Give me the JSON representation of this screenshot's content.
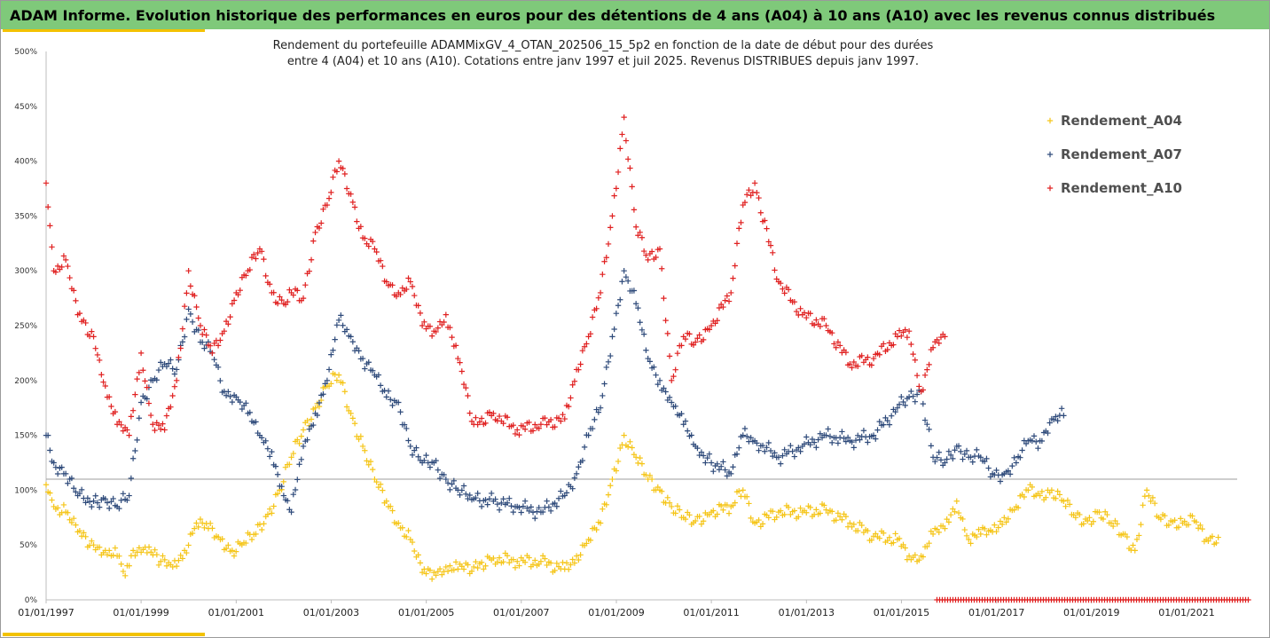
{
  "header": {
    "title": "ADAM Informe. Evolution historique des performances en euros pour des détentions de 4 ans (A04) à 10 ans (A10) avec les revenus connus distribués"
  },
  "chart_data": {
    "type": "scatter",
    "title_line1": "Rendement du portefeuille ADAMMixGV_4_OTAN_202506_15_5p2  en fonction de la date de début pour des durées",
    "title_line2": "entre 4 (A04) et 10 ans (A10). Cotations  entre janv 1997 et juil 2025. Revenus DISTRIBUES depuis janv 1997.",
    "xlabel": "",
    "ylabel": "",
    "x_unit": "date",
    "xlim": [
      "1997-01-01",
      "2022-07-01"
    ],
    "ylim": [
      0,
      500
    ],
    "y_ticks": [
      "0%",
      "50%",
      "100%",
      "150%",
      "200%",
      "250%",
      "300%",
      "350%",
      "400%",
      "450%",
      "500%"
    ],
    "x_ticks": [
      "01/01/1997",
      "01/01/1999",
      "01/01/2001",
      "01/01/2003",
      "01/01/2005",
      "01/01/2007",
      "01/01/2009",
      "01/01/2011",
      "01/01/2013",
      "01/01/2015",
      "01/01/2017",
      "01/01/2019",
      "01/01/2021"
    ],
    "reference_line_y": 110,
    "grid": false,
    "legend_position": "top-right",
    "marker": "+",
    "series": [
      {
        "name": "Rendement_A04",
        "color": "#f5c518",
        "points": [
          [
            "1997-01",
            105
          ],
          [
            "1997-03",
            85
          ],
          [
            "1997-06",
            80
          ],
          [
            "1997-09",
            62
          ],
          [
            "1998-01",
            50
          ],
          [
            "1998-04",
            45
          ],
          [
            "1998-07",
            40
          ],
          [
            "1998-09",
            22
          ],
          [
            "1998-11",
            45
          ],
          [
            "1999-02",
            48
          ],
          [
            "1999-06",
            35
          ],
          [
            "1999-09",
            30
          ],
          [
            "1999-12",
            45
          ],
          [
            "2000-03",
            70
          ],
          [
            "2000-06",
            65
          ],
          [
            "2000-09",
            55
          ],
          [
            "2000-12",
            45
          ],
          [
            "2001-03",
            52
          ],
          [
            "2001-06",
            60
          ],
          [
            "2001-09",
            78
          ],
          [
            "2001-12",
            100
          ],
          [
            "2002-03",
            130
          ],
          [
            "2002-06",
            155
          ],
          [
            "2002-09",
            175
          ],
          [
            "2002-12",
            195
          ],
          [
            "2003-03",
            205
          ],
          [
            "2003-06",
            170
          ],
          [
            "2003-09",
            140
          ],
          [
            "2003-12",
            110
          ],
          [
            "2004-03",
            90
          ],
          [
            "2004-06",
            70
          ],
          [
            "2004-09",
            55
          ],
          [
            "2004-12",
            25
          ],
          [
            "2005-03",
            25
          ],
          [
            "2005-06",
            30
          ],
          [
            "2005-09",
            28
          ],
          [
            "2006-01",
            30
          ],
          [
            "2006-06",
            38
          ],
          [
            "2006-12",
            35
          ],
          [
            "2007-06",
            35
          ],
          [
            "2007-12",
            28
          ],
          [
            "2008-03",
            40
          ],
          [
            "2008-06",
            55
          ],
          [
            "2008-09",
            70
          ],
          [
            "2008-12",
            110
          ],
          [
            "2009-03",
            150
          ],
          [
            "2009-06",
            130
          ],
          [
            "2009-09",
            110
          ],
          [
            "2009-12",
            100
          ],
          [
            "2010-03",
            85
          ],
          [
            "2010-06",
            75
          ],
          [
            "2010-09",
            72
          ],
          [
            "2011-01",
            80
          ],
          [
            "2011-06",
            85
          ],
          [
            "2011-09",
            100
          ],
          [
            "2011-12",
            70
          ],
          [
            "2012-06",
            80
          ],
          [
            "2012-12",
            80
          ],
          [
            "2013-06",
            82
          ],
          [
            "2013-12",
            70
          ],
          [
            "2014-06",
            58
          ],
          [
            "2014-12",
            55
          ],
          [
            "2015-03",
            40
          ],
          [
            "2015-06",
            40
          ],
          [
            "2015-09",
            60
          ],
          [
            "2015-12",
            65
          ],
          [
            "2016-03",
            90
          ],
          [
            "2016-06",
            55
          ],
          [
            "2016-09",
            60
          ],
          [
            "2016-12",
            62
          ],
          [
            "2017-03",
            75
          ],
          [
            "2017-06",
            85
          ],
          [
            "2017-09",
            100
          ],
          [
            "2017-12",
            95
          ],
          [
            "2018-03",
            100
          ],
          [
            "2018-06",
            90
          ],
          [
            "2018-09",
            75
          ],
          [
            "2018-12",
            72
          ],
          [
            "2019-03",
            80
          ],
          [
            "2019-06",
            70
          ],
          [
            "2019-09",
            60
          ],
          [
            "2019-12",
            45
          ],
          [
            "2020-03",
            100
          ],
          [
            "2020-06",
            75
          ],
          [
            "2020-09",
            72
          ],
          [
            "2020-12",
            70
          ],
          [
            "2021-03",
            72
          ],
          [
            "2021-06",
            55
          ],
          [
            "2021-09",
            57
          ]
        ]
      },
      {
        "name": "Rendement_A07",
        "color": "#2e4a7a",
        "points": [
          [
            "1997-01",
            150
          ],
          [
            "1997-03",
            125
          ],
          [
            "1997-06",
            115
          ],
          [
            "1997-09",
            95
          ],
          [
            "1998-01",
            90
          ],
          [
            "1998-04",
            92
          ],
          [
            "1998-07",
            85
          ],
          [
            "1998-10",
            95
          ],
          [
            "1999-01",
            180
          ],
          [
            "1999-04",
            200
          ],
          [
            "1999-07",
            215
          ],
          [
            "1999-10",
            210
          ],
          [
            "2000-01",
            265
          ],
          [
            "2000-04",
            235
          ],
          [
            "2000-07",
            225
          ],
          [
            "2000-10",
            190
          ],
          [
            "2001-01",
            185
          ],
          [
            "2001-04",
            170
          ],
          [
            "2001-07",
            150
          ],
          [
            "2001-10",
            135
          ],
          [
            "2002-01",
            95
          ],
          [
            "2002-03",
            80
          ],
          [
            "2002-06",
            140
          ],
          [
            "2002-09",
            170
          ],
          [
            "2002-12",
            200
          ],
          [
            "2003-03",
            255
          ],
          [
            "2003-06",
            240
          ],
          [
            "2003-09",
            220
          ],
          [
            "2003-12",
            205
          ],
          [
            "2004-03",
            185
          ],
          [
            "2004-06",
            180
          ],
          [
            "2004-09",
            140
          ],
          [
            "2004-12",
            125
          ],
          [
            "2005-03",
            125
          ],
          [
            "2005-06",
            110
          ],
          [
            "2005-09",
            100
          ],
          [
            "2006-01",
            92
          ],
          [
            "2006-06",
            90
          ],
          [
            "2006-12",
            85
          ],
          [
            "2007-06",
            80
          ],
          [
            "2007-12",
            95
          ],
          [
            "2008-03",
            115
          ],
          [
            "2008-06",
            150
          ],
          [
            "2008-09",
            175
          ],
          [
            "2008-12",
            240
          ],
          [
            "2009-03",
            300
          ],
          [
            "2009-06",
            270
          ],
          [
            "2009-09",
            220
          ],
          [
            "2009-12",
            200
          ],
          [
            "2010-03",
            180
          ],
          [
            "2010-06",
            160
          ],
          [
            "2010-09",
            140
          ],
          [
            "2011-01",
            125
          ],
          [
            "2011-06",
            115
          ],
          [
            "2011-09",
            150
          ],
          [
            "2011-12",
            145
          ],
          [
            "2012-06",
            130
          ],
          [
            "2012-12",
            140
          ],
          [
            "2013-06",
            150
          ],
          [
            "2013-12",
            145
          ],
          [
            "2014-06",
            150
          ],
          [
            "2014-12",
            175
          ],
          [
            "2015-03",
            185
          ],
          [
            "2015-06",
            190
          ],
          [
            "2015-09",
            130
          ],
          [
            "2015-12",
            125
          ],
          [
            "2016-03",
            140
          ],
          [
            "2016-06",
            130
          ],
          [
            "2016-09",
            130
          ],
          [
            "2016-12",
            115
          ],
          [
            "2017-03",
            115
          ],
          [
            "2017-06",
            125
          ],
          [
            "2017-09",
            145
          ],
          [
            "2017-12",
            145
          ],
          [
            "2018-03",
            165
          ],
          [
            "2018-06",
            168
          ]
        ]
      },
      {
        "name": "Rendement_A10",
        "color": "#e02020",
        "points": [
          [
            "1997-01",
            380
          ],
          [
            "1997-03",
            300
          ],
          [
            "1997-06",
            310
          ],
          [
            "1997-09",
            260
          ],
          [
            "1998-01",
            240
          ],
          [
            "1998-04",
            195
          ],
          [
            "1998-07",
            160
          ],
          [
            "1998-10",
            150
          ],
          [
            "1999-01",
            225
          ],
          [
            "1999-04",
            160
          ],
          [
            "1999-07",
            155
          ],
          [
            "1999-10",
            200
          ],
          [
            "2000-01",
            300
          ],
          [
            "2000-04",
            250
          ],
          [
            "2000-07",
            225
          ],
          [
            "2000-10",
            245
          ],
          [
            "2001-01",
            280
          ],
          [
            "2001-04",
            300
          ],
          [
            "2001-07",
            320
          ],
          [
            "2001-10",
            280
          ],
          [
            "2002-01",
            270
          ],
          [
            "2002-03",
            280
          ],
          [
            "2002-06",
            275
          ],
          [
            "2002-09",
            335
          ],
          [
            "2002-12",
            360
          ],
          [
            "2003-03",
            400
          ],
          [
            "2003-06",
            370
          ],
          [
            "2003-09",
            330
          ],
          [
            "2003-12",
            320
          ],
          [
            "2004-03",
            290
          ],
          [
            "2004-06",
            280
          ],
          [
            "2004-09",
            290
          ],
          [
            "2004-12",
            250
          ],
          [
            "2005-03",
            245
          ],
          [
            "2005-06",
            260
          ],
          [
            "2005-09",
            220
          ],
          [
            "2006-01",
            160
          ],
          [
            "2006-06",
            170
          ],
          [
            "2006-12",
            155
          ],
          [
            "2007-06",
            160
          ],
          [
            "2007-12",
            165
          ],
          [
            "2008-03",
            210
          ],
          [
            "2008-06",
            240
          ],
          [
            "2008-09",
            280
          ],
          [
            "2008-12",
            350
          ],
          [
            "2009-03",
            440
          ],
          [
            "2009-06",
            340
          ],
          [
            "2009-09",
            310
          ],
          [
            "2009-12",
            320
          ],
          [
            "2010-03",
            200
          ],
          [
            "2010-06",
            240
          ],
          [
            "2010-09",
            235
          ],
          [
            "2011-01",
            250
          ],
          [
            "2011-06",
            280
          ],
          [
            "2011-09",
            360
          ],
          [
            "2011-12",
            380
          ],
          [
            "2012-06",
            290
          ],
          [
            "2012-12",
            260
          ],
          [
            "2013-06",
            250
          ],
          [
            "2013-12",
            215
          ],
          [
            "2014-06",
            220
          ],
          [
            "2014-12",
            240
          ],
          [
            "2015-03",
            245
          ],
          [
            "2015-06",
            190
          ],
          [
            "2015-09",
            230
          ],
          [
            "2015-12",
            240
          ]
        ]
      },
      {
        "name": "",
        "color": "#e02020",
        "note": "zero-value markers along the x axis",
        "points": [
          [
            "2015-10",
            0
          ],
          [
            "2022-05",
            0
          ]
        ],
        "dense_range": true
      }
    ]
  }
}
